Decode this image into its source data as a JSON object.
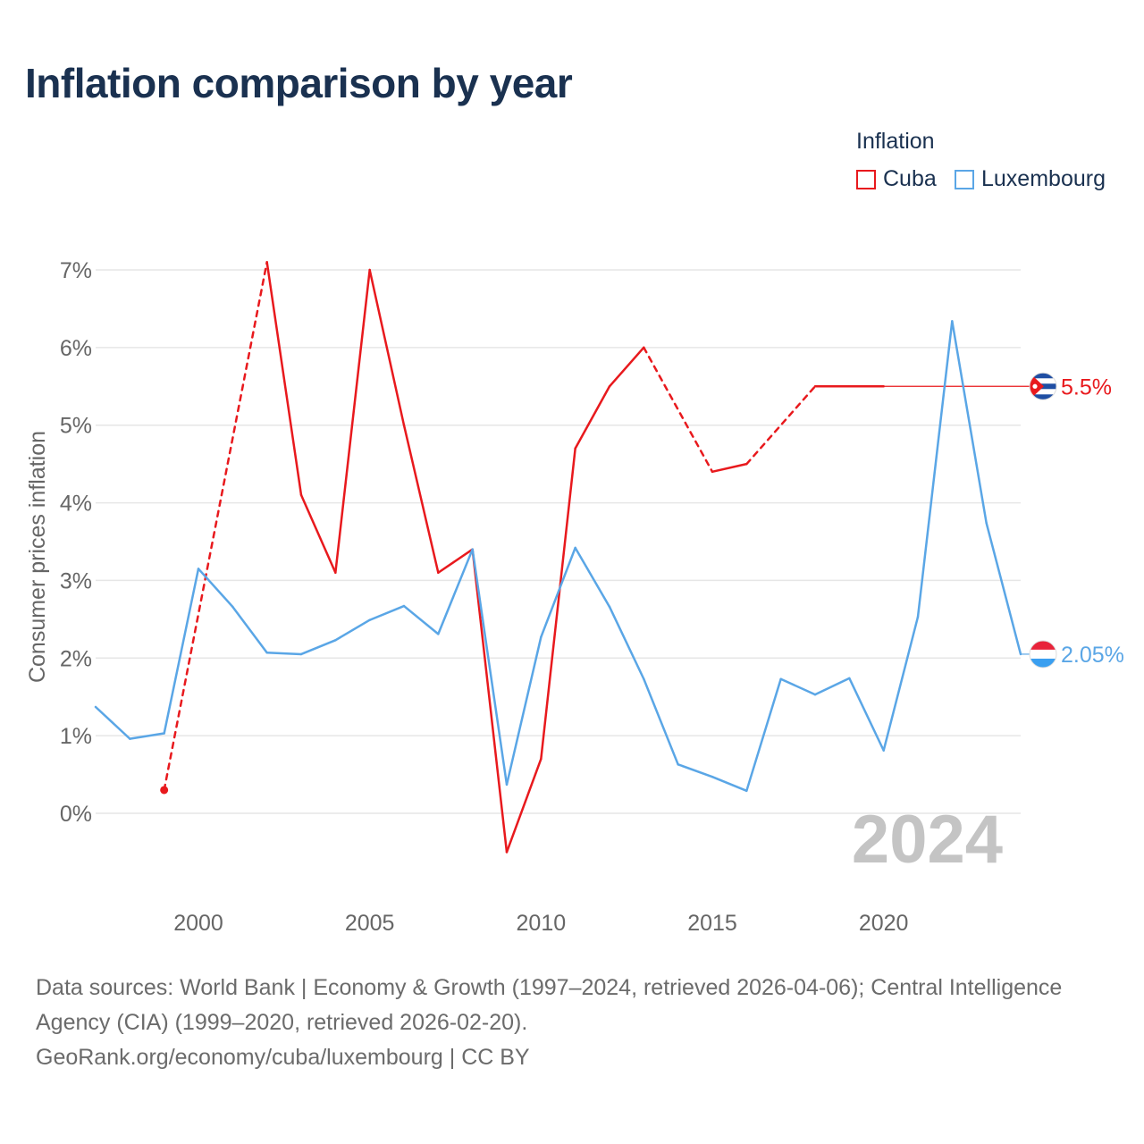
{
  "title": "Inflation comparison by year",
  "legend": {
    "title": "Inflation",
    "items": [
      {
        "name": "Cuba",
        "color": "#e8191d"
      },
      {
        "name": "Luxembourg",
        "color": "#5aa6e6"
      }
    ]
  },
  "year_label": "2024",
  "footer": {
    "sources": "Data sources: World Bank | Economy & Growth (1997–2024, retrieved 2026-04-06); Central Intelligence Agency (CIA) (1999–2020, retrieved 2026-02-20).",
    "credit": "GeoRank.org/economy/cuba/luxembourg | CC BY"
  },
  "chart_data": {
    "type": "line",
    "title": "Inflation comparison by year",
    "xlabel": "",
    "ylabel": "Consumer prices inflation",
    "xlim": [
      1997,
      2024
    ],
    "ylim": [
      -1,
      7
    ],
    "x_ticks": [
      2000,
      2005,
      2010,
      2015,
      2020
    ],
    "y_ticks": [
      0,
      1,
      2,
      3,
      4,
      5,
      6,
      7
    ],
    "y_tick_labels": [
      "0%",
      "1%",
      "2%",
      "3%",
      "4%",
      "5%",
      "6%",
      "7%"
    ],
    "grid": "horizontal",
    "series": [
      {
        "name": "Cuba",
        "color": "#e8191d",
        "points": [
          {
            "x": 1999,
            "y": 0.3
          },
          {
            "x": 2002,
            "y": 7.1
          },
          {
            "x": 2003,
            "y": 4.1
          },
          {
            "x": 2004,
            "y": 3.1
          },
          {
            "x": 2005,
            "y": 7.0
          },
          {
            "x": 2006,
            "y": 5.0
          },
          {
            "x": 2007,
            "y": 3.1
          },
          {
            "x": 2008,
            "y": 3.4
          },
          {
            "x": 2009,
            "y": -0.5
          },
          {
            "x": 2010,
            "y": 0.7
          },
          {
            "x": 2011,
            "y": 4.7
          },
          {
            "x": 2012,
            "y": 5.5
          },
          {
            "x": 2013,
            "y": 6.0
          },
          {
            "x": 2015,
            "y": 4.4
          },
          {
            "x": 2016,
            "y": 4.5
          },
          {
            "x": 2018,
            "y": 5.5
          },
          {
            "x": 2019,
            "y": 5.5
          },
          {
            "x": 2020,
            "y": 5.5
          }
        ],
        "final_value_label": "5.5%",
        "final_value": 5.5
      },
      {
        "name": "Luxembourg",
        "color": "#5aa6e6",
        "points": [
          {
            "x": 1997,
            "y": 1.37
          },
          {
            "x": 1998,
            "y": 0.96
          },
          {
            "x": 1999,
            "y": 1.03
          },
          {
            "x": 2000,
            "y": 3.15
          },
          {
            "x": 2001,
            "y": 2.66
          },
          {
            "x": 2002,
            "y": 2.07
          },
          {
            "x": 2003,
            "y": 2.05
          },
          {
            "x": 2004,
            "y": 2.23
          },
          {
            "x": 2005,
            "y": 2.49
          },
          {
            "x": 2006,
            "y": 2.67
          },
          {
            "x": 2007,
            "y": 2.31
          },
          {
            "x": 2008,
            "y": 3.4
          },
          {
            "x": 2009,
            "y": 0.37
          },
          {
            "x": 2010,
            "y": 2.27
          },
          {
            "x": 2011,
            "y": 3.42
          },
          {
            "x": 2012,
            "y": 2.66
          },
          {
            "x": 2013,
            "y": 1.73
          },
          {
            "x": 2014,
            "y": 0.63
          },
          {
            "x": 2015,
            "y": 0.47
          },
          {
            "x": 2016,
            "y": 0.29
          },
          {
            "x": 2017,
            "y": 1.73
          },
          {
            "x": 2018,
            "y": 1.53
          },
          {
            "x": 2019,
            "y": 1.74
          },
          {
            "x": 2020,
            "y": 0.81
          },
          {
            "x": 2021,
            "y": 2.53
          },
          {
            "x": 2022,
            "y": 6.34
          },
          {
            "x": 2023,
            "y": 3.74
          },
          {
            "x": 2024,
            "y": 2.05
          }
        ],
        "final_value_label": "2.05%",
        "final_value": 2.05
      }
    ]
  }
}
